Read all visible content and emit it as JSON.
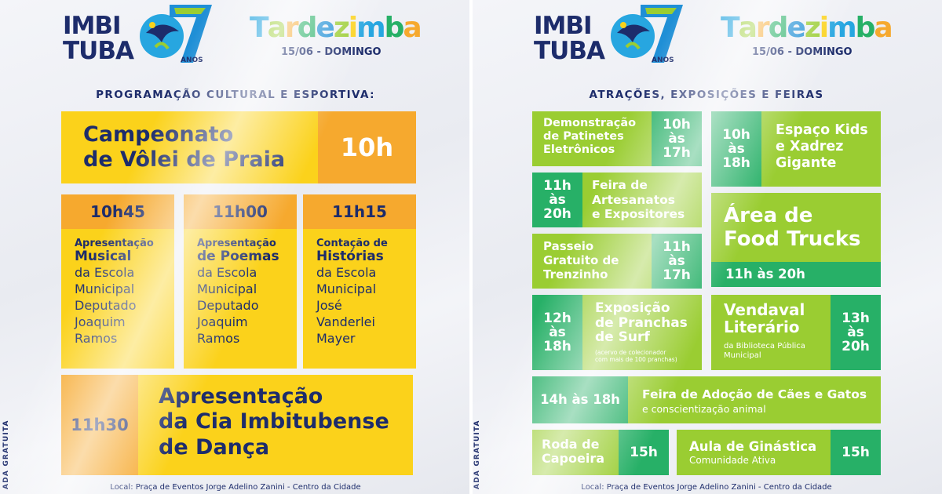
{
  "colors": {
    "navy": "#1d2c6b",
    "yellow": "#fbd21b",
    "orange": "#f6a92e",
    "light_green": "#9acd32",
    "dark_green": "#27b067"
  },
  "logo": {
    "line1": "IMBI",
    "line2": "TUBA",
    "anos": "ANOS"
  },
  "event": {
    "name": "Tardezimba",
    "letters": [
      "T",
      "a",
      "r",
      "d",
      "e",
      "z",
      "i",
      "m",
      "b",
      "a"
    ],
    "date": "15/06 - DOMINGO"
  },
  "left": {
    "title": "PROGRAMAÇÃO CULTURAL E ESPORTIVA:",
    "volei": {
      "line1": "Campeonato",
      "line2": "de Vôlei de Praia",
      "time": "10h"
    },
    "columns": [
      {
        "time": "10h45",
        "small": "Apresentação",
        "big": "Musical",
        "rest": "da Escola\nMunicipal\nDeputado\nJoaquim\nRamos"
      },
      {
        "time": "11h00",
        "small": "Apresentação",
        "big": "de Poemas",
        "rest": "da Escola\nMunicipal\nDeputado\nJoaquim\nRamos"
      },
      {
        "time": "11h15",
        "small": "Contação de",
        "big": "Histórias",
        "rest": "da Escola\nMunicipal\nJosé\nVanderlei\nMayer"
      }
    ],
    "danca": {
      "time": "11h30",
      "line1": "Apresentação",
      "line2": "da Cia Imbitubense",
      "line3": "de Dança"
    },
    "vertical": "ADA GRATUITA",
    "footer": "Local: Praça de Eventos Jorge Adelino Zanini - Centro da Cidade"
  },
  "right": {
    "title": "ATRAÇÕES, EXPOSIÇÕES E FEIRAS",
    "patinetes": {
      "l1": "Demonstração",
      "l2": "de Patinetes",
      "l3": "Eletrônicos",
      "t1": "10h",
      "t2": "às",
      "t3": "17h"
    },
    "kids": {
      "t1": "10h",
      "t2": "às",
      "t3": "18h",
      "l1": "Espaço Kids",
      "l2": "e Xadrez",
      "l3": "Gigante"
    },
    "artesanatos": {
      "t1": "11h",
      "t2": "às",
      "t3": "20h",
      "l1": "Feira de",
      "l2": "Artesanatos",
      "l3": "e Expositores"
    },
    "foodtrucks": {
      "l1": "Área de",
      "l2": "Food Trucks",
      "time": "11h às 20h"
    },
    "trenzinho": {
      "l1": "Passeio",
      "l2": "Gratuito de",
      "l3": "Trenzinho",
      "t1": "11h",
      "t2": "às",
      "t3": "17h"
    },
    "pranchas": {
      "t1": "12h",
      "t2": "às",
      "t3": "18h",
      "l1": "Exposição",
      "l2": "de Pranchas",
      "l3": "de Surf",
      "note1": "(acervo de colecionador",
      "note2": "com mais de 100 pranchas)"
    },
    "vendaval": {
      "l1": "Vendaval",
      "l2": "Literário",
      "s1": "da Biblioteca Pública",
      "s2": "Municipal",
      "t1": "13h",
      "t2": "às",
      "t3": "20h"
    },
    "adocao": {
      "time": "14h às 18h",
      "title": "Feira de Adoção de Cães e Gatos",
      "sub": "e conscientização animal"
    },
    "capoeira": {
      "l1": "Roda de",
      "l2": "Capoeira",
      "time": "15h"
    },
    "ginastica": {
      "title": "Aula de Ginástica",
      "sub": "Comunidade Ativa",
      "time": "15h"
    },
    "vertical": "ADA GRATUITA",
    "footer": "Local: Praça de Eventos Jorge Adelino Zanini - Centro da Cidade"
  }
}
